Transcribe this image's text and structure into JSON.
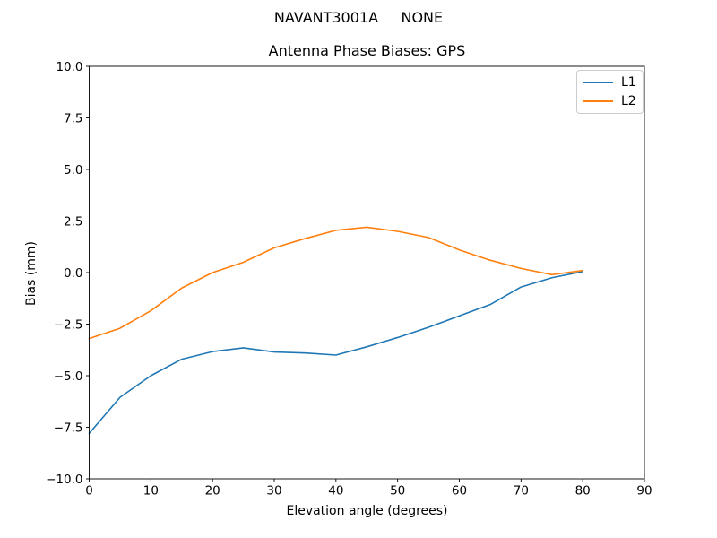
{
  "chart_data": {
    "type": "line",
    "suptitle": "NAVANT3001A     NONE",
    "title": "Antenna Phase Biases: GPS",
    "xlabel": "Elevation angle (degrees)",
    "ylabel": "Bias (mm)",
    "xlim": [
      0,
      90
    ],
    "ylim": [
      -10,
      10
    ],
    "grid": false,
    "legend_position": "upper right",
    "xticks": [
      0,
      10,
      20,
      30,
      40,
      50,
      60,
      70,
      80,
      90
    ],
    "xtick_labels": [
      "0",
      "10",
      "20",
      "30",
      "40",
      "50",
      "60",
      "70",
      "80",
      "90"
    ],
    "yticks": [
      -10,
      -7.5,
      -5,
      -2.5,
      0,
      2.5,
      5,
      7.5,
      10
    ],
    "ytick_labels": [
      "−10.0",
      "−7.5",
      "−5.0",
      "−2.5",
      "0.0",
      "2.5",
      "5.0",
      "7.5",
      "10.0"
    ],
    "x": [
      0,
      5,
      10,
      15,
      20,
      25,
      30,
      35,
      40,
      45,
      50,
      55,
      60,
      65,
      70,
      75,
      80
    ],
    "series": [
      {
        "name": "L1",
        "color": "#1f77b4",
        "values": [
          -7.8,
          -6.05,
          -5.0,
          -4.2,
          -3.83,
          -3.65,
          -3.85,
          -3.9,
          -4.0,
          -3.6,
          -3.15,
          -2.65,
          -2.1,
          -1.55,
          -0.7,
          -0.25,
          0.05
        ]
      },
      {
        "name": "L2",
        "color": "#ff7f0e",
        "values": [
          -3.2,
          -2.7,
          -1.85,
          -0.75,
          0.0,
          0.5,
          1.2,
          1.65,
          2.05,
          2.2,
          2.0,
          1.7,
          1.1,
          0.6,
          0.2,
          -0.1,
          0.1
        ]
      }
    ]
  }
}
